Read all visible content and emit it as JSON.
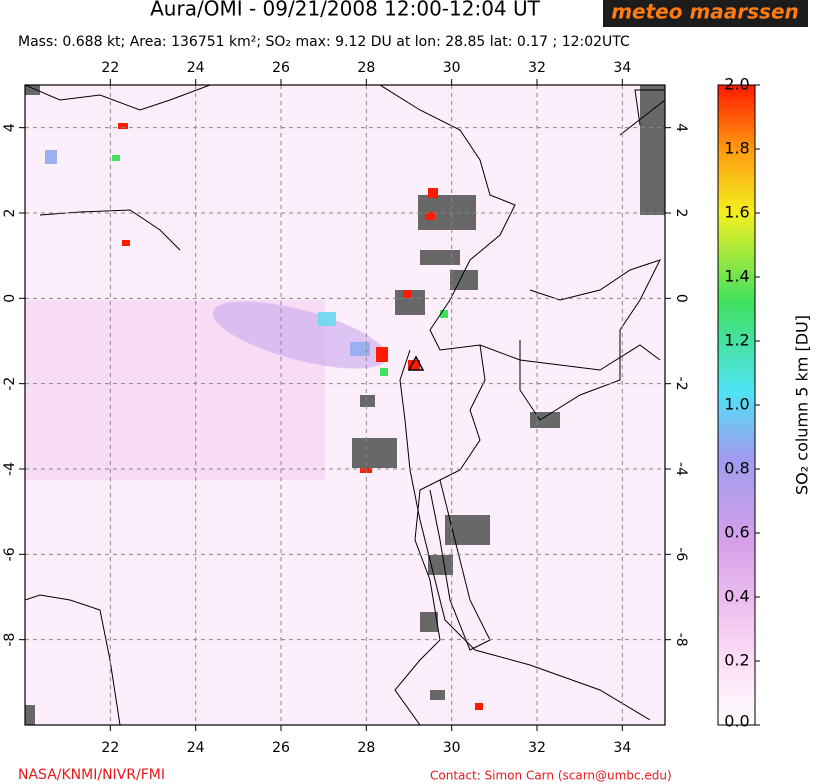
{
  "header": {
    "title": "Aura/OMI - 09/21/2008 12:00-12:04 UT",
    "subtitle": "Mass: 0.688 kt; Area: 136751 km²; SO₂ max: 9.12 DU at lon: 28.85 lat: 0.17 ; 12:02UTC",
    "logo": "meteo maarssen"
  },
  "map": {
    "xlim": [
      20,
      35
    ],
    "ylim": [
      -10,
      5
    ],
    "xticks": [
      22,
      24,
      26,
      28,
      30,
      32,
      34
    ],
    "yticks": [
      4,
      2,
      0,
      -2,
      -4,
      -6,
      -8
    ],
    "grid": true
  },
  "colorbar": {
    "label": "SO₂ column 5 km [DU]",
    "lim": [
      0,
      2
    ],
    "ticks": [
      {
        "value": 0,
        "label": "0.0"
      },
      {
        "value": 0.2,
        "label": "0.2"
      },
      {
        "value": 0.4,
        "label": "0.4"
      },
      {
        "value": 0.6,
        "label": "0.6"
      },
      {
        "value": 0.8,
        "label": "0.8"
      },
      {
        "value": 1,
        "label": "1.0"
      },
      {
        "value": 1.2,
        "label": "1.2"
      },
      {
        "value": 1.4,
        "label": "1.4"
      },
      {
        "value": 1.6,
        "label": "1.6"
      },
      {
        "value": 1.8,
        "label": "1.8"
      },
      {
        "value": 2,
        "label": "2.0"
      }
    ]
  },
  "footer": {
    "credits": "NASA/KNMI/NIVR/FMI",
    "contact": "Contact: Simon Carn (scarn@umbc.edu)"
  }
}
